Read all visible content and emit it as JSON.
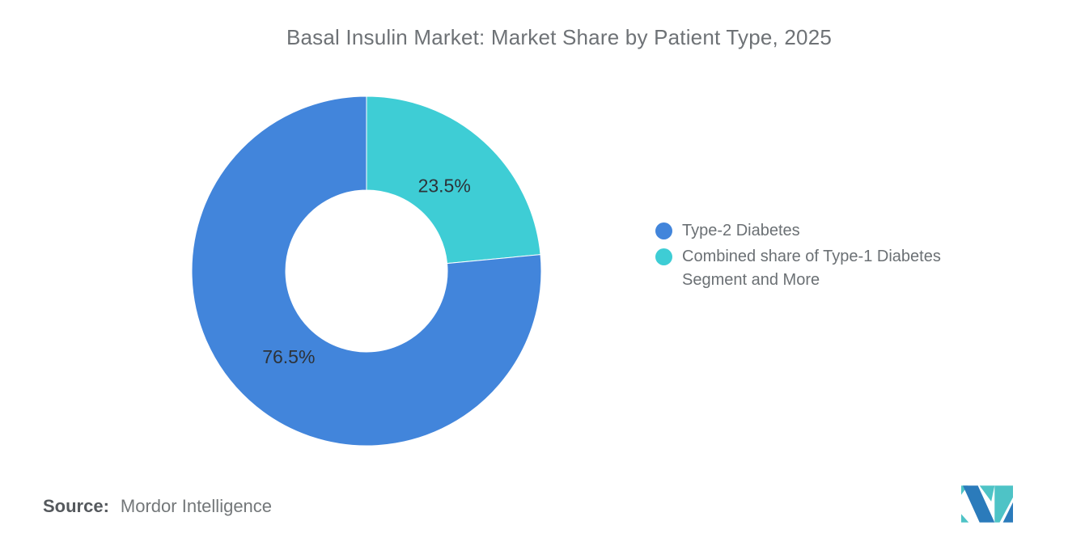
{
  "chart_data": {
    "type": "pie",
    "subtype": "donut",
    "title": "Basal Insulin Market: Market Share by Patient Type, 2025",
    "categories": [
      "Type-2 Diabetes",
      "Combined share of Type-1 Diabetes Segment and More"
    ],
    "values": [
      76.5,
      23.5
    ],
    "data_labels": [
      "76.5%",
      "23.5%"
    ],
    "colors": [
      "#4285DB",
      "#3ECDD5"
    ],
    "start_angle": 0,
    "direction": "clockwise",
    "legend_position": "right",
    "grid": "off"
  },
  "source": {
    "label": "Source:",
    "value": "Mordor Intelligence"
  },
  "logo": {
    "name": "mordor-intelligence-logo",
    "colors": {
      "blue": "#2B7BBB",
      "teal": "#4EC3C6"
    }
  }
}
